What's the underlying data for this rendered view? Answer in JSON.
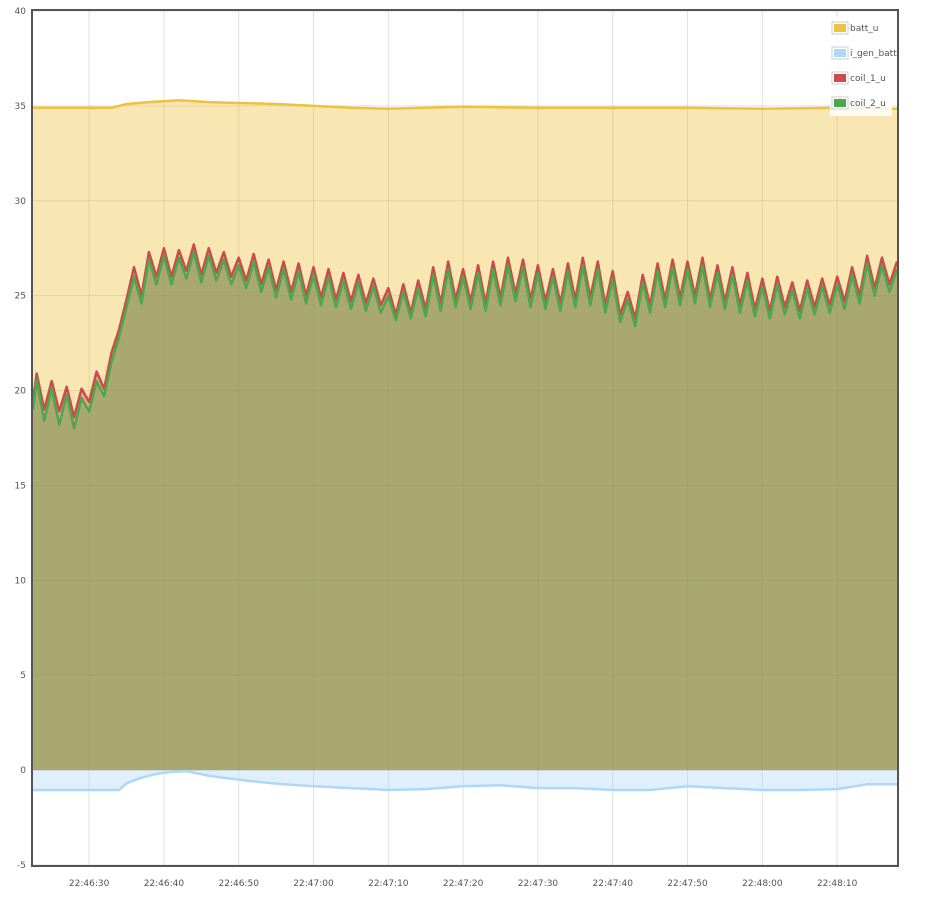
{
  "chart_data": {
    "type": "area",
    "title": "",
    "xlabel": "",
    "ylabel": "",
    "x_range": [
      "22:46:22.5",
      "22:48:18"
    ],
    "ylim": [
      -5,
      40
    ],
    "y_ticks": [
      "-5",
      "0",
      "5",
      "10",
      "15",
      "20",
      "25",
      "30",
      "35",
      "40"
    ],
    "x_ticks": [
      "22:46:30",
      "22:46:40",
      "22:46:50",
      "22:47:00",
      "22:47:10",
      "22:47:20",
      "22:47:30",
      "22:47:40",
      "22:47:50",
      "22:48:00",
      "22:48:10"
    ],
    "grid": true,
    "legend_position": "top-right",
    "series": [
      {
        "name": "batt_u",
        "color": "#edc240",
        "points": [
          [
            "22:46:22.5",
            34.9
          ],
          [
            "22:46:30",
            34.9
          ],
          [
            "22:46:33",
            34.9
          ],
          [
            "22:46:35",
            35.1
          ],
          [
            "22:46:38",
            35.2
          ],
          [
            "22:46:42",
            35.3
          ],
          [
            "22:46:46",
            35.2
          ],
          [
            "22:46:50",
            35.15
          ],
          [
            "22:46:55",
            35.1
          ],
          [
            "22:47:00",
            35.0
          ],
          [
            "22:47:05",
            34.9
          ],
          [
            "22:47:10",
            34.85
          ],
          [
            "22:47:20",
            34.95
          ],
          [
            "22:47:30",
            34.9
          ],
          [
            "22:47:40",
            34.9
          ],
          [
            "22:47:50",
            34.9
          ],
          [
            "22:48:00",
            34.85
          ],
          [
            "22:48:10",
            34.9
          ],
          [
            "22:48:18",
            34.85
          ]
        ]
      },
      {
        "name": "i_gen_batt",
        "color": "#afd8f8",
        "points": [
          [
            "22:46:22.5",
            -1.05
          ],
          [
            "22:46:30",
            -1.05
          ],
          [
            "22:46:34",
            -1.05
          ],
          [
            "22:46:35",
            -0.7
          ],
          [
            "22:46:37",
            -0.4
          ],
          [
            "22:46:39",
            -0.2
          ],
          [
            "22:46:41",
            -0.1
          ],
          [
            "22:46:43",
            -0.05
          ],
          [
            "22:46:46",
            -0.3
          ],
          [
            "22:46:49",
            -0.45
          ],
          [
            "22:46:52",
            -0.6
          ],
          [
            "22:46:56",
            -0.75
          ],
          [
            "22:47:00",
            -0.85
          ],
          [
            "22:47:05",
            -0.95
          ],
          [
            "22:47:10",
            -1.05
          ],
          [
            "22:47:15",
            -1.0
          ],
          [
            "22:47:20",
            -0.85
          ],
          [
            "22:47:25",
            -0.8
          ],
          [
            "22:47:30",
            -0.95
          ],
          [
            "22:47:35",
            -0.95
          ],
          [
            "22:47:40",
            -1.05
          ],
          [
            "22:47:45",
            -1.05
          ],
          [
            "22:47:50",
            -0.85
          ],
          [
            "22:47:55",
            -0.95
          ],
          [
            "22:48:00",
            -1.05
          ],
          [
            "22:48:05",
            -1.05
          ],
          [
            "22:48:10",
            -1.0
          ],
          [
            "22:48:14",
            -0.75
          ],
          [
            "22:48:18",
            -0.75
          ]
        ]
      },
      {
        "name": "coil_1_u",
        "color": "#cb4b4b",
        "points": [
          [
            "22:46:22.5",
            19.5
          ],
          [
            "22:46:23",
            20.9
          ],
          [
            "22:46:24",
            19.0
          ],
          [
            "22:46:25",
            20.5
          ],
          [
            "22:46:26",
            18.9
          ],
          [
            "22:46:27",
            20.2
          ],
          [
            "22:46:28",
            18.6
          ],
          [
            "22:46:29",
            20.1
          ],
          [
            "22:46:30",
            19.4
          ],
          [
            "22:46:31",
            21.0
          ],
          [
            "22:46:32",
            20.1
          ],
          [
            "22:46:33",
            22.0
          ],
          [
            "22:46:34",
            23.2
          ],
          [
            "22:46:35",
            24.8
          ],
          [
            "22:46:36",
            26.5
          ],
          [
            "22:46:37",
            25.0
          ],
          [
            "22:46:38",
            27.3
          ],
          [
            "22:46:39",
            26.0
          ],
          [
            "22:46:40",
            27.5
          ],
          [
            "22:46:41",
            26.0
          ],
          [
            "22:46:42",
            27.4
          ],
          [
            "22:46:43",
            26.3
          ],
          [
            "22:46:44",
            27.7
          ],
          [
            "22:46:45",
            26.1
          ],
          [
            "22:46:46",
            27.5
          ],
          [
            "22:46:47",
            26.2
          ],
          [
            "22:46:48",
            27.3
          ],
          [
            "22:46:49",
            26.0
          ],
          [
            "22:46:50",
            27.0
          ],
          [
            "22:46:51",
            25.8
          ],
          [
            "22:46:52",
            27.2
          ],
          [
            "22:46:53",
            25.6
          ],
          [
            "22:46:54",
            26.9
          ],
          [
            "22:46:55",
            25.3
          ],
          [
            "22:46:56",
            26.8
          ],
          [
            "22:46:57",
            25.2
          ],
          [
            "22:46:58",
            26.7
          ],
          [
            "22:46:59",
            25.0
          ],
          [
            "22:47:00",
            26.5
          ],
          [
            "22:47:01",
            24.9
          ],
          [
            "22:47:02",
            26.4
          ],
          [
            "22:47:03",
            24.8
          ],
          [
            "22:47:04",
            26.2
          ],
          [
            "22:47:05",
            24.7
          ],
          [
            "22:47:06",
            26.1
          ],
          [
            "22:47:07",
            24.6
          ],
          [
            "22:47:08",
            25.9
          ],
          [
            "22:47:09",
            24.5
          ],
          [
            "22:47:10",
            25.4
          ],
          [
            "22:47:11",
            24.0
          ],
          [
            "22:47:12",
            25.6
          ],
          [
            "22:47:13",
            24.1
          ],
          [
            "22:47:14",
            25.8
          ],
          [
            "22:47:15",
            24.3
          ],
          [
            "22:47:16",
            26.5
          ],
          [
            "22:47:17",
            24.6
          ],
          [
            "22:47:18",
            26.8
          ],
          [
            "22:47:19",
            24.8
          ],
          [
            "22:47:20",
            26.4
          ],
          [
            "22:47:21",
            24.7
          ],
          [
            "22:47:22",
            26.6
          ],
          [
            "22:47:23",
            24.6
          ],
          [
            "22:47:24",
            26.8
          ],
          [
            "22:47:25",
            24.9
          ],
          [
            "22:47:26",
            27.0
          ],
          [
            "22:47:27",
            25.1
          ],
          [
            "22:47:28",
            26.9
          ],
          [
            "22:47:29",
            24.8
          ],
          [
            "22:47:30",
            26.6
          ],
          [
            "22:47:31",
            24.7
          ],
          [
            "22:47:32",
            26.4
          ],
          [
            "22:47:33",
            24.6
          ],
          [
            "22:47:34",
            26.7
          ],
          [
            "22:47:35",
            24.8
          ],
          [
            "22:47:36",
            27.0
          ],
          [
            "22:47:37",
            24.9
          ],
          [
            "22:47:38",
            26.8
          ],
          [
            "22:47:39",
            24.5
          ],
          [
            "22:47:40",
            26.3
          ],
          [
            "22:47:41",
            24.0
          ],
          [
            "22:47:42",
            25.2
          ],
          [
            "22:47:43",
            23.8
          ],
          [
            "22:47:44",
            26.1
          ],
          [
            "22:47:45",
            24.5
          ],
          [
            "22:47:46",
            26.7
          ],
          [
            "22:47:47",
            24.8
          ],
          [
            "22:47:48",
            26.9
          ],
          [
            "22:47:49",
            24.9
          ],
          [
            "22:47:50",
            26.8
          ],
          [
            "22:47:51",
            25.0
          ],
          [
            "22:47:52",
            27.0
          ],
          [
            "22:47:53",
            24.8
          ],
          [
            "22:47:54",
            26.6
          ],
          [
            "22:47:55",
            24.7
          ],
          [
            "22:47:56",
            26.5
          ],
          [
            "22:47:57",
            24.5
          ],
          [
            "22:47:58",
            26.2
          ],
          [
            "22:47:59",
            24.3
          ],
          [
            "22:48:00",
            25.9
          ],
          [
            "22:48:01",
            24.2
          ],
          [
            "22:48:02",
            26.0
          ],
          [
            "22:48:03",
            24.4
          ],
          [
            "22:48:04",
            25.7
          ],
          [
            "22:48:05",
            24.2
          ],
          [
            "22:48:06",
            25.8
          ],
          [
            "22:48:07",
            24.4
          ],
          [
            "22:48:08",
            25.9
          ],
          [
            "22:48:09",
            24.5
          ],
          [
            "22:48:10",
            26.0
          ],
          [
            "22:48:11",
            24.7
          ],
          [
            "22:48:12",
            26.5
          ],
          [
            "22:48:13",
            25.0
          ],
          [
            "22:48:14",
            27.1
          ],
          [
            "22:48:15",
            25.4
          ],
          [
            "22:48:16",
            27.0
          ],
          [
            "22:48:17",
            25.6
          ],
          [
            "22:48:18",
            26.8
          ]
        ]
      },
      {
        "name": "coil_2_u",
        "color": "#4da74d",
        "points": [
          [
            "22:46:22.5",
            19.0
          ],
          [
            "22:46:23",
            20.6
          ],
          [
            "22:46:24",
            18.4
          ],
          [
            "22:46:25",
            20.1
          ],
          [
            "22:46:26",
            18.2
          ],
          [
            "22:46:27",
            19.8
          ],
          [
            "22:46:28",
            18.0
          ],
          [
            "22:46:29",
            19.6
          ],
          [
            "22:46:30",
            18.9
          ],
          [
            "22:46:31",
            20.5
          ],
          [
            "22:46:32",
            19.7
          ],
          [
            "22:46:33",
            21.5
          ],
          [
            "22:46:34",
            22.8
          ],
          [
            "22:46:35",
            24.4
          ],
          [
            "22:46:36",
            26.0
          ],
          [
            "22:46:37",
            24.6
          ],
          [
            "22:46:38",
            26.9
          ],
          [
            "22:46:39",
            25.6
          ],
          [
            "22:46:40",
            27.1
          ],
          [
            "22:46:41",
            25.6
          ],
          [
            "22:46:42",
            27.0
          ],
          [
            "22:46:43",
            25.9
          ],
          [
            "22:46:44",
            27.3
          ],
          [
            "22:46:45",
            25.7
          ],
          [
            "22:46:46",
            27.1
          ],
          [
            "22:46:47",
            25.8
          ],
          [
            "22:46:48",
            26.9
          ],
          [
            "22:46:49",
            25.6
          ],
          [
            "22:46:50",
            26.6
          ],
          [
            "22:46:51",
            25.4
          ],
          [
            "22:46:52",
            26.8
          ],
          [
            "22:46:53",
            25.2
          ],
          [
            "22:46:54",
            26.5
          ],
          [
            "22:46:55",
            24.9
          ],
          [
            "22:46:56",
            26.4
          ],
          [
            "22:46:57",
            24.8
          ],
          [
            "22:46:58",
            26.3
          ],
          [
            "22:46:59",
            24.6
          ],
          [
            "22:47:00",
            26.1
          ],
          [
            "22:47:01",
            24.5
          ],
          [
            "22:47:02",
            26.0
          ],
          [
            "22:47:03",
            24.4
          ],
          [
            "22:47:04",
            25.8
          ],
          [
            "22:47:05",
            24.3
          ],
          [
            "22:47:06",
            25.7
          ],
          [
            "22:47:07",
            24.2
          ],
          [
            "22:47:08",
            25.5
          ],
          [
            "22:47:09",
            24.1
          ],
          [
            "22:47:10",
            25.0
          ],
          [
            "22:47:11",
            23.7
          ],
          [
            "22:47:12",
            25.2
          ],
          [
            "22:47:13",
            23.8
          ],
          [
            "22:47:14",
            25.4
          ],
          [
            "22:47:15",
            23.9
          ],
          [
            "22:47:16",
            26.1
          ],
          [
            "22:47:17",
            24.2
          ],
          [
            "22:47:18",
            26.4
          ],
          [
            "22:47:19",
            24.4
          ],
          [
            "22:47:20",
            26.0
          ],
          [
            "22:47:21",
            24.3
          ],
          [
            "22:47:22",
            26.2
          ],
          [
            "22:47:23",
            24.2
          ],
          [
            "22:47:24",
            26.4
          ],
          [
            "22:47:25",
            24.5
          ],
          [
            "22:47:26",
            26.6
          ],
          [
            "22:47:27",
            24.7
          ],
          [
            "22:47:28",
            26.5
          ],
          [
            "22:47:29",
            24.4
          ],
          [
            "22:47:30",
            26.2
          ],
          [
            "22:47:31",
            24.3
          ],
          [
            "22:47:32",
            26.0
          ],
          [
            "22:47:33",
            24.2
          ],
          [
            "22:47:34",
            26.3
          ],
          [
            "22:47:35",
            24.4
          ],
          [
            "22:47:36",
            26.6
          ],
          [
            "22:47:37",
            24.5
          ],
          [
            "22:47:38",
            26.4
          ],
          [
            "22:47:39",
            24.1
          ],
          [
            "22:47:40",
            25.9
          ],
          [
            "22:47:41",
            23.6
          ],
          [
            "22:47:42",
            24.8
          ],
          [
            "22:47:43",
            23.4
          ],
          [
            "22:47:44",
            25.7
          ],
          [
            "22:47:45",
            24.1
          ],
          [
            "22:47:46",
            26.3
          ],
          [
            "22:47:47",
            24.4
          ],
          [
            "22:47:48",
            26.5
          ],
          [
            "22:47:49",
            24.5
          ],
          [
            "22:47:50",
            26.4
          ],
          [
            "22:47:51",
            24.6
          ],
          [
            "22:47:52",
            26.6
          ],
          [
            "22:47:53",
            24.4
          ],
          [
            "22:47:54",
            26.2
          ],
          [
            "22:47:55",
            24.3
          ],
          [
            "22:47:56",
            26.1
          ],
          [
            "22:47:57",
            24.1
          ],
          [
            "22:47:58",
            25.8
          ],
          [
            "22:47:59",
            23.9
          ],
          [
            "22:48:00",
            25.5
          ],
          [
            "22:48:01",
            23.8
          ],
          [
            "22:48:02",
            25.6
          ],
          [
            "22:48:03",
            24.0
          ],
          [
            "22:48:04",
            25.3
          ],
          [
            "22:48:05",
            23.8
          ],
          [
            "22:48:06",
            25.4
          ],
          [
            "22:48:07",
            24.0
          ],
          [
            "22:48:08",
            25.5
          ],
          [
            "22:48:09",
            24.1
          ],
          [
            "22:48:10",
            25.6
          ],
          [
            "22:48:11",
            24.3
          ],
          [
            "22:48:12",
            26.1
          ],
          [
            "22:48:13",
            24.6
          ],
          [
            "22:48:14",
            26.7
          ],
          [
            "22:48:15",
            25.0
          ],
          [
            "22:48:16",
            26.6
          ],
          [
            "22:48:17",
            25.2
          ],
          [
            "22:48:18",
            26.4
          ]
        ]
      }
    ]
  }
}
